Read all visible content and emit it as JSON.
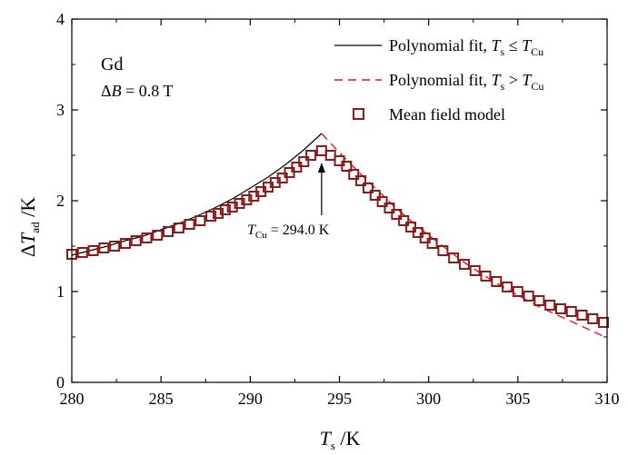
{
  "colors": {
    "axis": "#000000",
    "poly_below": "#000000",
    "poly_above": "#e8141c",
    "mean_field": "#8b1a1a"
  },
  "chart_data": {
    "type": "line",
    "xlim": [
      280,
      310
    ],
    "ylim": [
      0,
      4
    ],
    "x_ticks": [
      280,
      285,
      290,
      295,
      300,
      305,
      310
    ],
    "y_ticks": [
      0,
      1,
      2,
      3,
      4
    ],
    "grid": false,
    "legend_placement": "top-right",
    "xlabel": {
      "var": "T",
      "sub": "s",
      "unit": " /K"
    },
    "ylabel": {
      "prefix": "Δ",
      "var": "T",
      "sub": "ad",
      "unit": " /K"
    },
    "annotations": {
      "material": "Gd",
      "field": {
        "prefix": "Δ",
        "var": "B",
        "rest": " = 0.8 T"
      },
      "curie": {
        "var": "T",
        "sub": "Cu",
        "rest": " = 294.0 K",
        "x": 294.0,
        "y": 2.52
      }
    },
    "series": [
      {
        "name": "Polynomial fit, T_s ≤ T_Cu",
        "legend": {
          "text": "Polynomial fit, ",
          "v1": "T",
          "s1": "s",
          "op": " ≤ ",
          "v2": "T",
          "s2": "Cu"
        },
        "style": "solid",
        "x": [
          280,
          281,
          282,
          283,
          284,
          285,
          286,
          287,
          288,
          289,
          290,
          291,
          292,
          293,
          294
        ],
        "y": [
          1.4,
          1.45,
          1.5,
          1.56,
          1.61,
          1.68,
          1.75,
          1.83,
          1.92,
          2.02,
          2.14,
          2.26,
          2.4,
          2.56,
          2.74
        ]
      },
      {
        "name": "Polynomial fit, T_s > T_Cu",
        "legend": {
          "text": "Polynomial fit, ",
          "v1": "T",
          "s1": "s",
          "op": " > ",
          "v2": "T",
          "s2": "Cu"
        },
        "style": "dashed",
        "x": [
          294,
          295,
          296,
          297,
          298,
          299,
          300,
          301,
          302,
          303,
          304,
          305,
          306,
          307,
          308,
          309,
          310
        ],
        "y": [
          2.74,
          2.53,
          2.33,
          2.14,
          1.95,
          1.78,
          1.62,
          1.47,
          1.32,
          1.19,
          1.07,
          0.96,
          0.85,
          0.76,
          0.67,
          0.58,
          0.49
        ]
      },
      {
        "name": "Mean field model",
        "legend": {
          "text": "Mean field model"
        },
        "style": "markers",
        "marker": "square",
        "x": [
          280,
          280.6,
          281.2,
          281.8,
          282.4,
          283.0,
          283.6,
          284.2,
          284.8,
          285.4,
          286.0,
          286.6,
          287.2,
          287.8,
          288.2,
          288.6,
          289.0,
          289.4,
          289.8,
          290.2,
          290.6,
          291.0,
          291.4,
          291.8,
          292.2,
          292.6,
          293.0,
          293.4,
          294.0,
          294.5,
          295.0,
          295.4,
          295.8,
          296.2,
          296.6,
          297.0,
          297.4,
          297.8,
          298.2,
          298.6,
          299.0,
          299.4,
          299.8,
          300.2,
          300.8,
          301.4,
          302.0,
          302.6,
          303.2,
          303.8,
          304.4,
          305.0,
          305.6,
          306.2,
          306.8,
          307.4,
          308.0,
          308.6,
          309.2,
          309.8
        ],
        "y": [
          1.41,
          1.43,
          1.45,
          1.48,
          1.5,
          1.53,
          1.56,
          1.59,
          1.62,
          1.66,
          1.7,
          1.74,
          1.78,
          1.83,
          1.86,
          1.9,
          1.93,
          1.97,
          2.01,
          2.05,
          2.1,
          2.15,
          2.2,
          2.25,
          2.31,
          2.37,
          2.43,
          2.5,
          2.55,
          2.5,
          2.44,
          2.38,
          2.29,
          2.22,
          2.14,
          2.06,
          1.99,
          1.92,
          1.85,
          1.78,
          1.71,
          1.65,
          1.59,
          1.53,
          1.45,
          1.37,
          1.3,
          1.23,
          1.17,
          1.11,
          1.05,
          1.0,
          0.95,
          0.9,
          0.85,
          0.81,
          0.78,
          0.74,
          0.7,
          0.66
        ]
      }
    ]
  }
}
